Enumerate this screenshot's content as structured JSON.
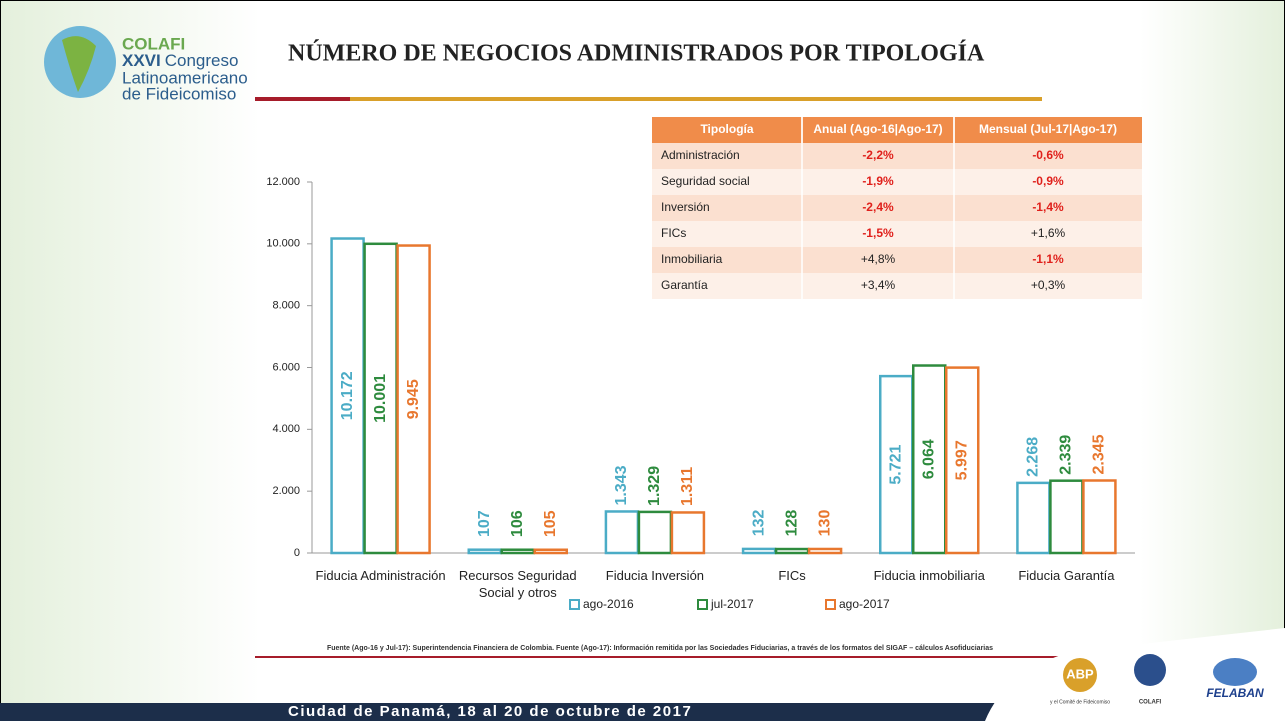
{
  "header": {
    "logo": {
      "name": "COLAFI",
      "edition": "XXVI",
      "event": "Congreso",
      "line3": "Latinoamericano",
      "line4": "de Fideicomiso"
    },
    "title": "NÚMERO DE NEGOCIOS ADMINISTRADOS POR TIPOLOGÍA"
  },
  "table": {
    "header": [
      "Tipología",
      "Anual (Ago-16|Ago-17)",
      "Mensual (Jul-17|Ago-17)"
    ],
    "rows": [
      [
        "Administración",
        "-2,2%",
        "-0,6%"
      ],
      [
        "Seguridad social",
        "-1,9%",
        "-0,9%"
      ],
      [
        "Inversión",
        "-2,4%",
        "-1,4%"
      ],
      [
        "FICs",
        "-1,5%",
        "+1,6%"
      ],
      [
        "Inmobiliaria",
        "+4,8%",
        "-1,1%"
      ],
      [
        "Garantía",
        "+3,4%",
        "+0,3%"
      ]
    ]
  },
  "chart_data": {
    "type": "bar",
    "categories": [
      "Fiducia Administración",
      "Recursos Seguridad Social y otros",
      "Fiducia Inversión",
      "FICs",
      "Fiducia inmobiliaria",
      "Fiducia Garantía"
    ],
    "series": [
      {
        "name": "ago-2016",
        "color": "#4bacc6",
        "values": [
          10172,
          107,
          1343,
          132,
          5721,
          2268
        ],
        "value_labels": [
          "10.172",
          "107",
          "1.343",
          "132",
          "5.721",
          "2.268"
        ]
      },
      {
        "name": "jul-2017",
        "color": "#2e8b3e",
        "values": [
          10001,
          106,
          1329,
          128,
          6064,
          2339
        ],
        "value_labels": [
          "10.001",
          "106",
          "1.329",
          "128",
          "6.064",
          "2.339"
        ]
      },
      {
        "name": "ago-2017",
        "color": "#e8772e",
        "values": [
          9945,
          105,
          1311,
          130,
          5997,
          2345
        ],
        "value_labels": [
          "9.945",
          "105",
          "1.311",
          "130",
          "5.997",
          "2.345"
        ]
      }
    ],
    "ylim": [
      0,
      12000
    ],
    "yticks": [
      0,
      {
        "value": 2000,
        "label": "2.000"
      },
      {
        "value": 4000,
        "label": "4.000"
      },
      {
        "value": 6000,
        "label": "6.000"
      },
      {
        "value": 8000,
        "label": "8.000"
      },
      {
        "value": 10000,
        "label": "10.000"
      },
      {
        "value": 12000,
        "label": "12.000"
      }
    ]
  },
  "footer": {
    "source": "Fuente (Ago-16 y Jul-17): Superintendencia Financiera de Colombia. Fuente (Ago-17): Información remitida por las Sociedades Fiduciarias, a través de los formatos del SIGAF – cálculos Asofiduciarias",
    "event": "Ciudad de Panamá, 18 al 20 de octubre de 2017",
    "logos": [
      "ABP",
      "y el Comité de Fideicomiso",
      "COLAFI",
      "FELABAN"
    ]
  }
}
